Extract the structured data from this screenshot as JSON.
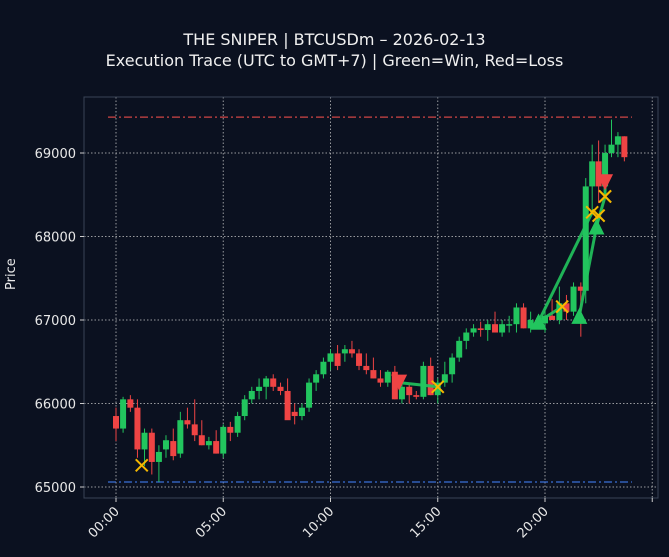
{
  "header": {
    "title_line1": "THE SNIPER | BTCUSDm – 2026-02-13",
    "title_line2": "Execution Trace (UTC to GMT+7) | Green=Win, Red=Loss"
  },
  "colors": {
    "background": "#0b1120",
    "up_candle": "#22c55e",
    "down_candle": "#ef4444",
    "win": "#22c55e",
    "loss": "#ef4444",
    "exit_marker": "#f5b800",
    "high_line": "#d04545",
    "low_line": "#3b6fd6",
    "grid": "#c8c8c8",
    "axes_frame": "#3a4456"
  },
  "chart_data": {
    "type": "candlestick",
    "title": "THE SNIPER | BTCUSDm – 2026-02-13\nExecution Trace (UTC to GMT+7) | Green=Win, Red=Loss",
    "xlabel": "",
    "ylabel": "Price",
    "x_ticks": [
      "00:00",
      "05:00",
      "10:00",
      "15:00",
      "20:00"
    ],
    "y_ticks": [
      65000,
      66000,
      67000,
      68000,
      69000
    ],
    "ylim": [
      64850,
      69650
    ],
    "xlim_hours": [
      -1.5,
      25.2
    ],
    "grid": true,
    "reference_lines": [
      {
        "name": "day_high",
        "value": 69430,
        "style": "dash-dot",
        "color": "#d04545"
      },
      {
        "name": "day_low",
        "value": 65060,
        "style": "dash-dot",
        "color": "#3b6fd6"
      }
    ],
    "candles_ohlc_approx": [
      [
        0.0,
        65850,
        65950,
        65550,
        65700
      ],
      [
        0.33,
        65700,
        66080,
        65650,
        66050
      ],
      [
        0.67,
        66050,
        66100,
        65900,
        65950
      ],
      [
        1.0,
        65950,
        66050,
        65350,
        65450
      ],
      [
        1.33,
        65450,
        65700,
        65250,
        65650
      ],
      [
        1.67,
        65650,
        65700,
        65150,
        65300
      ],
      [
        2.0,
        65300,
        65500,
        65060,
        65420
      ],
      [
        2.33,
        65450,
        65620,
        65350,
        65560
      ],
      [
        2.67,
        65550,
        65700,
        65320,
        65370
      ],
      [
        3.0,
        65400,
        65900,
        65350,
        65800
      ],
      [
        3.33,
        65800,
        65950,
        65700,
        65750
      ],
      [
        3.67,
        65750,
        66050,
        65550,
        65620
      ],
      [
        4.0,
        65620,
        65800,
        65500,
        65500
      ],
      [
        4.33,
        65500,
        65600,
        65450,
        65550
      ],
      [
        4.67,
        65550,
        65680,
        65400,
        65400
      ],
      [
        5.0,
        65400,
        65750,
        65350,
        65720
      ],
      [
        5.33,
        65720,
        65780,
        65550,
        65650
      ],
      [
        5.67,
        65650,
        65900,
        65600,
        65850
      ],
      [
        6.0,
        65850,
        66100,
        65800,
        66050
      ],
      [
        6.33,
        66050,
        66200,
        66000,
        66150
      ],
      [
        6.67,
        66150,
        66300,
        66050,
        66200
      ],
      [
        7.0,
        66200,
        66330,
        66050,
        66300
      ],
      [
        7.33,
        66300,
        66350,
        66150,
        66200
      ],
      [
        7.67,
        66200,
        66250,
        66100,
        66150
      ],
      [
        8.0,
        66150,
        66300,
        65900,
        65800
      ],
      [
        8.33,
        65900,
        66000,
        65750,
        65850
      ],
      [
        8.67,
        65850,
        66000,
        65800,
        65950
      ],
      [
        9.0,
        65950,
        66300,
        65900,
        66250
      ],
      [
        9.33,
        66250,
        66400,
        66150,
        66350
      ],
      [
        9.67,
        66350,
        66550,
        66300,
        66500
      ],
      [
        10.0,
        66500,
        66650,
        66400,
        66600
      ],
      [
        10.33,
        66600,
        66700,
        66400,
        66450
      ],
      [
        10.67,
        66600,
        66700,
        66500,
        66650
      ],
      [
        11.0,
        66650,
        66750,
        66550,
        66600
      ],
      [
        11.33,
        66600,
        66650,
        66400,
        66450
      ],
      [
        11.67,
        66450,
        66600,
        66350,
        66400
      ],
      [
        12.0,
        66400,
        66550,
        66300,
        66300
      ],
      [
        12.33,
        66300,
        66400,
        66200,
        66250
      ],
      [
        12.67,
        66250,
        66400,
        66200,
        66380
      ],
      [
        13.0,
        66380,
        66450,
        66050,
        66050
      ],
      [
        13.33,
        66050,
        66250,
        66000,
        66200
      ],
      [
        13.67,
        66200,
        66230,
        66000,
        66100
      ],
      [
        14.0,
        66100,
        66150,
        66050,
        66080
      ],
      [
        14.33,
        66080,
        66500,
        66050,
        66450
      ],
      [
        14.67,
        66450,
        66550,
        66100,
        66100
      ],
      [
        15.0,
        66100,
        66300,
        66000,
        66250
      ],
      [
        15.33,
        66250,
        66500,
        66200,
        66350
      ],
      [
        15.67,
        66350,
        66600,
        66250,
        66550
      ],
      [
        16.0,
        66550,
        66800,
        66500,
        66750
      ],
      [
        16.33,
        66750,
        66900,
        66650,
        66850
      ],
      [
        16.67,
        66850,
        66950,
        66800,
        66900
      ],
      [
        17.0,
        66900,
        66980,
        66800,
        66880
      ],
      [
        17.33,
        66880,
        67000,
        66750,
        66950
      ],
      [
        17.67,
        66950,
        67100,
        66850,
        66850
      ],
      [
        18.0,
        66850,
        67000,
        66800,
        66950
      ],
      [
        18.33,
        66950,
        67050,
        66850,
        66950
      ],
      [
        18.67,
        66950,
        67200,
        66850,
        67150
      ],
      [
        19.0,
        67150,
        67200,
        66900,
        66900
      ],
      [
        19.33,
        66900,
        67100,
        66850,
        67000
      ],
      [
        19.67,
        67000,
        67050,
        66900,
        66960
      ],
      [
        20.0,
        66960,
        67100,
        66850,
        67050
      ],
      [
        20.33,
        67050,
        67250,
        67000,
        67000
      ],
      [
        20.67,
        67000,
        67400,
        66950,
        67200
      ],
      [
        21.0,
        67200,
        67300,
        67000,
        67100
      ],
      [
        21.33,
        67100,
        67450,
        67050,
        67400
      ],
      [
        21.67,
        67400,
        67450,
        66800,
        67350
      ],
      [
        21.9,
        67350,
        68700,
        67200,
        68600
      ],
      [
        22.2,
        68600,
        69100,
        68300,
        68900
      ],
      [
        22.5,
        68900,
        69150,
        68400,
        68600
      ],
      [
        22.8,
        68600,
        69100,
        68450,
        69000
      ],
      [
        23.1,
        69000,
        69400,
        68950,
        69100
      ],
      [
        23.4,
        69100,
        69250,
        68950,
        69200
      ],
      [
        23.7,
        69200,
        69200,
        68900,
        68950
      ]
    ],
    "trades": [
      {
        "entry_time": 13.2,
        "entry_price": 66250,
        "direction": "short",
        "exit_time": 15.0,
        "exit_price": 66200,
        "result": "win"
      },
      {
        "entry_time": 19.7,
        "entry_price": 66980,
        "direction": "long",
        "exit_time": 20.8,
        "exit_price": 67160,
        "result": "win"
      },
      {
        "entry_time": 19.7,
        "entry_price": 66980,
        "direction": "long",
        "exit_time": 22.2,
        "exit_price": 68290,
        "result": "win"
      },
      {
        "entry_time": 21.6,
        "entry_price": 67050,
        "direction": "long",
        "exit_time": 22.5,
        "exit_price": 68250,
        "result": "win"
      },
      {
        "entry_time": 22.4,
        "entry_price": 68120,
        "direction": "long",
        "exit_time": 22.8,
        "exit_price": 68480,
        "result": "win"
      },
      {
        "entry_time": 22.8,
        "entry_price": 68650,
        "direction": "short",
        "exit_time": 22.8,
        "exit_price": 68480,
        "result": "win"
      },
      {
        "entry_time": null,
        "entry_price": null,
        "direction": null,
        "exit_time": 1.2,
        "exit_price": 65260,
        "result": "exit-marker"
      }
    ]
  }
}
